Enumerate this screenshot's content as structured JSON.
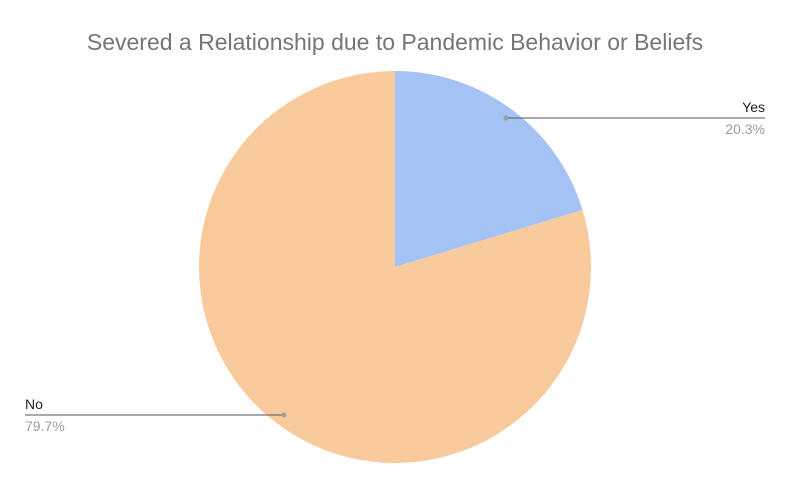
{
  "chart_data": {
    "type": "pie",
    "title": "Severed a Relationship due to Pandemic Behavior or Beliefs",
    "slices": [
      {
        "label": "Yes",
        "value": 20.3,
        "value_label": "20.3%",
        "color": "#a4c2f4"
      },
      {
        "label": "No",
        "value": 79.7,
        "value_label": "79.7%",
        "color": "#f9cb9c"
      }
    ],
    "legend": "none",
    "label_style": "callout"
  }
}
